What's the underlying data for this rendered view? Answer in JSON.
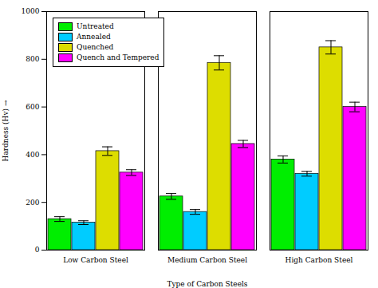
{
  "chart_data": {
    "type": "bar",
    "xlabel": "Type of Carbon Steels",
    "ylabel": "Hardness (Hv)",
    "categories": [
      "Low Carbon Steel",
      "Medium Carbon Steel",
      "High Carbon Steel"
    ],
    "series": [
      {
        "name": "Untreated",
        "color": "#00ee00",
        "values": [
          130,
          225,
          380
        ],
        "errors": [
          10,
          12,
          15
        ]
      },
      {
        "name": "Annealed",
        "color": "#00ccff",
        "values": [
          115,
          160,
          320
        ],
        "errors": [
          8,
          10,
          10
        ]
      },
      {
        "name": "Quenched",
        "color": "#dddd00",
        "values": [
          415,
          785,
          850
        ],
        "errors": [
          18,
          30,
          28
        ]
      },
      {
        "name": "Quench and Tempered",
        "color": "#ff00ff",
        "values": [
          325,
          445,
          600
        ],
        "errors": [
          12,
          15,
          20
        ]
      }
    ],
    "ylim": [
      0,
      1000
    ],
    "yticks": [
      0,
      200,
      400,
      600,
      800,
      1000
    ],
    "grid": false,
    "legend": "upper left"
  }
}
